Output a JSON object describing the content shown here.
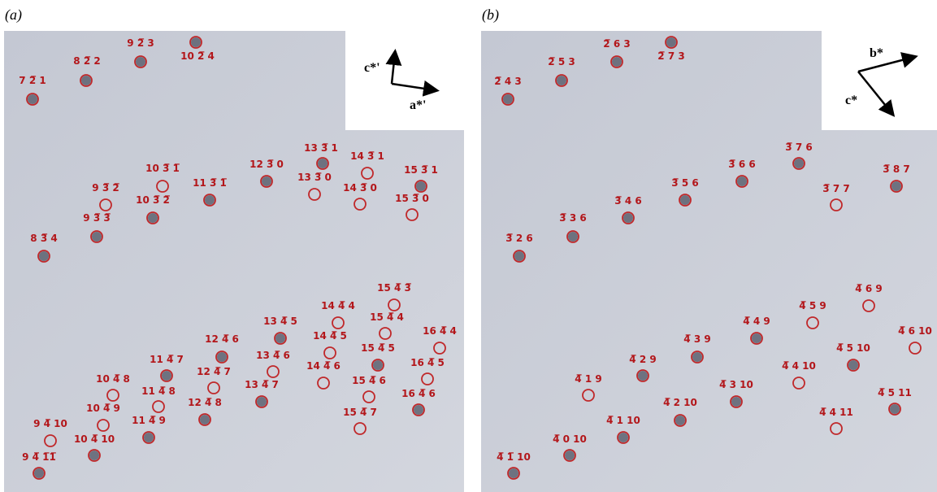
{
  "panels": [
    {
      "label": "(a)",
      "axes": [
        "c*'",
        "a*'"
      ],
      "spots": [
        "7 2̅ 1",
        "8 2̅ 2",
        "9 2̅ 3",
        "10 2̅ 4",
        "9 3̅ 2̅",
        "10 3̅ 1̅",
        "10 3̅ 2̅",
        "9 3̅ 3̅",
        "8 3̅ 4",
        "11 3̅ 1̅",
        "12 3̅ 0",
        "13 3̅ 1",
        "13 3̅ 0",
        "14 3̅ 1",
        "14 3̅ 0",
        "15 3̅ 1",
        "15 3̅ 0",
        "15 4̅ 3̅",
        "14 4̅ 4",
        "15 4̅ 4",
        "13 4̅ 5",
        "14 4̅ 5",
        "16 4̅ 4",
        "12 4̅ 6",
        "15 4̅ 5",
        "13 4̅ 6",
        "14 4̅ 6",
        "16 4̅ 5",
        "11 4̅ 7",
        "12 4̅ 7",
        "10 4̅ 8",
        "15 4̅ 6",
        "13 4̅ 7",
        "11 4̅ 8",
        "16 4̅ 6",
        "10 4̅ 9",
        "12 4̅ 8",
        "15 4̅ 7",
        "11 4̅ 9",
        "9 4̅ 10",
        "10 4̅ 10",
        "9 4̅ 1̅1̅"
      ]
    },
    {
      "label": "(b)",
      "axes": [
        "b*",
        "c*"
      ],
      "spots": [
        "2̅ 4 3",
        "2̅ 5 3",
        "2̅ 6 3",
        "2̅ 7 3",
        "3̅ 7 6",
        "3̅ 6 6",
        "3̅ 8 7",
        "3̅ 5 6",
        "3̅ 7 7",
        "3̅ 4 6",
        "3̅ 3 6",
        "3̅ 2 6",
        "4̅ 6 9",
        "4̅ 5 9",
        "4̅ 4 9",
        "4̅ 6 10",
        "4̅ 3 9",
        "4̅ 5 10",
        "4̅ 4 10",
        "4̅ 2 9",
        "4̅ 1 9",
        "4̅ 3 10",
        "4̅ 5 11",
        "4̅ 2 10",
        "4̅ 4 11",
        "4̅ 1 10",
        "4̅ 0 10",
        "4̅ 1̅ 10"
      ]
    }
  ]
}
